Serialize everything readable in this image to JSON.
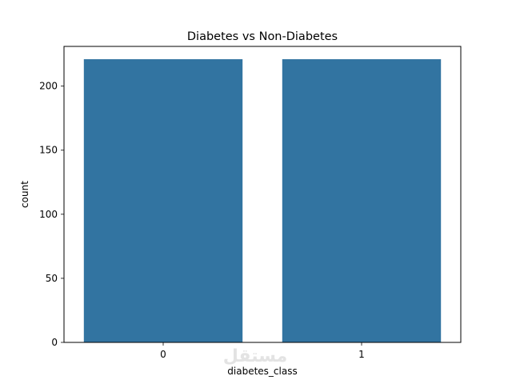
{
  "chart_data": {
    "type": "bar",
    "title": "Diabetes vs Non-Diabetes",
    "xlabel": "diabetes_class",
    "ylabel": "count",
    "categories": [
      "0",
      "1"
    ],
    "values": [
      221,
      221
    ],
    "ylim": [
      0,
      231
    ],
    "yticks": [
      0,
      50,
      100,
      150,
      200
    ],
    "grid": false,
    "bar_color": "#3274a1"
  },
  "watermark": {
    "text": "مستقل"
  }
}
